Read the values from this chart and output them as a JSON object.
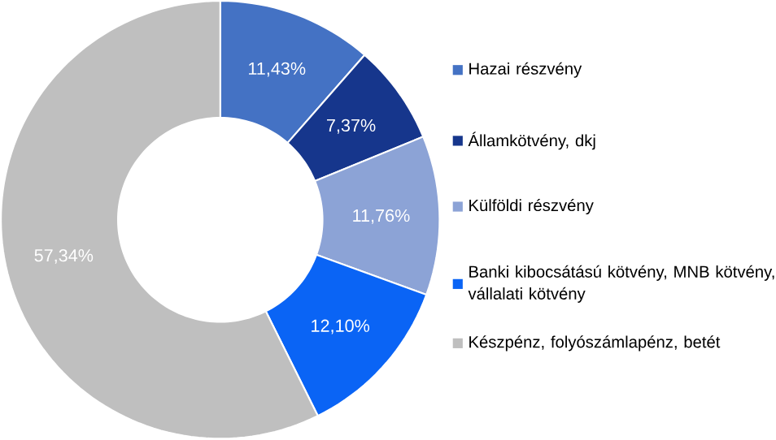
{
  "chart_data": {
    "type": "donut",
    "categories": [
      "Hazai részvény",
      "Államkötvény, dkj",
      "Külföldi részvény",
      "Banki kibocsátású kötvény, MNB kötvény, vállalati kötvény",
      "Készpénz, folyószámlapénz, betét"
    ],
    "values": [
      11.43,
      7.37,
      11.76,
      12.1,
      57.34
    ],
    "value_labels": [
      "11,43%",
      "7,37%",
      "11,76%",
      "12,10%",
      "57,34%"
    ],
    "colors": [
      "#4472c4",
      "#16368c",
      "#8ca3d6",
      "#0a64f5",
      "#bfbfbf"
    ],
    "legend": "right"
  }
}
